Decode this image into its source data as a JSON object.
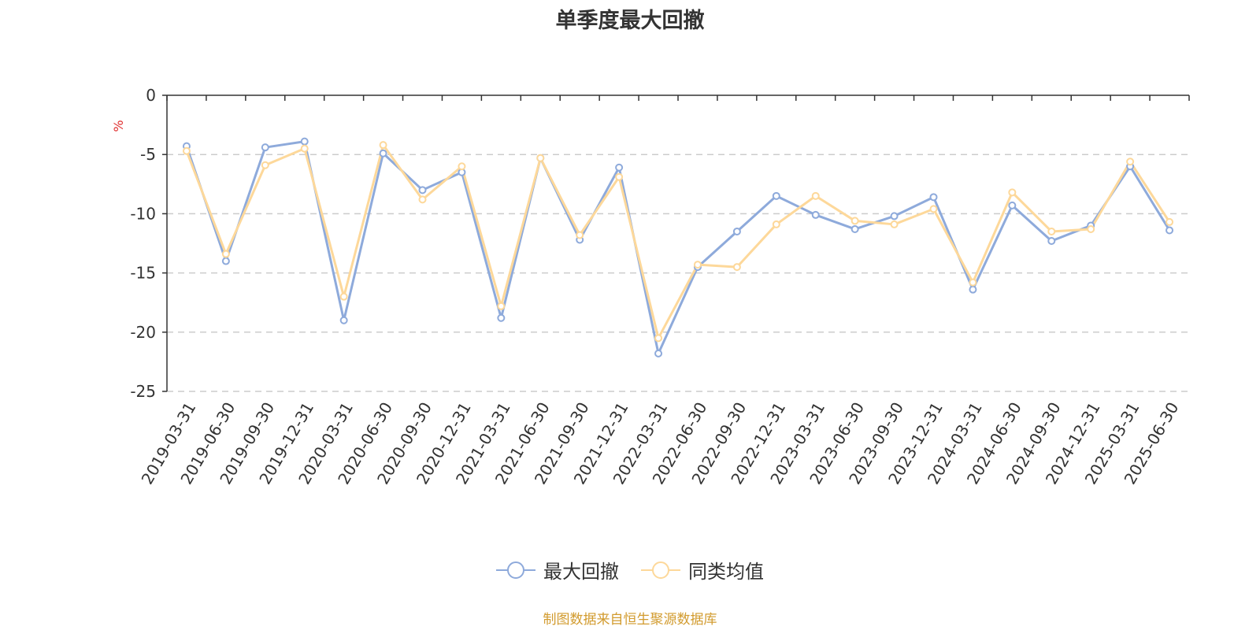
{
  "chart_data": {
    "type": "line",
    "title": "单季度最大回撤",
    "ylabel": "%",
    "ylim": [
      -25,
      0
    ],
    "yticks": [
      0,
      -5,
      -10,
      -15,
      -20,
      -25
    ],
    "grid": true,
    "legend_position": "bottom",
    "categories": [
      "2019-03-31",
      "2019-06-30",
      "2019-09-30",
      "2019-12-31",
      "2020-03-31",
      "2020-06-30",
      "2020-09-30",
      "2020-12-31",
      "2021-03-31",
      "2021-06-30",
      "2021-09-30",
      "2021-12-31",
      "2022-03-31",
      "2022-06-30",
      "2022-09-30",
      "2022-12-31",
      "2023-03-31",
      "2023-06-30",
      "2023-09-30",
      "2023-12-31",
      "2024-03-31",
      "2024-06-30",
      "2024-09-30",
      "2024-12-31",
      "2025-03-31",
      "2025-06-30"
    ],
    "series": [
      {
        "name": "最大回撤",
        "color": "#8eaadb",
        "values": [
          -4.3,
          -14.0,
          -4.4,
          -3.9,
          -19.0,
          -4.9,
          -8.0,
          -6.5,
          -18.8,
          -5.3,
          -12.2,
          -6.1,
          -21.8,
          -14.5,
          -11.5,
          -8.5,
          -10.1,
          -11.3,
          -10.2,
          -8.6,
          -16.4,
          -9.3,
          -12.3,
          -11.0,
          -6.0,
          -11.4
        ]
      },
      {
        "name": "同类均值",
        "color": "#fdd89a",
        "values": [
          -4.7,
          -13.4,
          -5.9,
          -4.5,
          -17.0,
          -4.2,
          -8.8,
          -6.0,
          -17.8,
          -5.3,
          -11.8,
          -6.9,
          -20.5,
          -14.3,
          -14.5,
          -10.9,
          -8.5,
          -10.6,
          -10.9,
          -9.6,
          -15.8,
          -8.2,
          -11.5,
          -11.3,
          -5.6,
          -10.7
        ]
      }
    ]
  },
  "legend": {
    "items": [
      "最大回撤",
      "同类均值"
    ]
  },
  "source": "制图数据来自恒生聚源数据库"
}
